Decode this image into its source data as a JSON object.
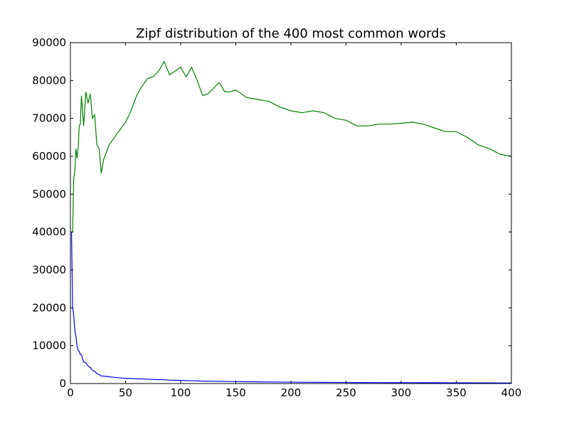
{
  "chart_data": {
    "type": "line",
    "title": "Zipf distribution of the 400 most common words",
    "x": [
      1,
      2,
      3,
      4,
      5,
      6,
      7,
      8,
      9,
      10,
      12,
      14,
      16,
      18,
      20,
      22,
      24,
      26,
      28,
      30,
      35,
      40,
      45,
      50,
      55,
      60,
      65,
      70,
      75,
      80,
      85,
      90,
      95,
      100,
      105,
      110,
      115,
      120,
      125,
      130,
      135,
      140,
      145,
      150,
      160,
      170,
      180,
      190,
      200,
      210,
      220,
      230,
      240,
      250,
      260,
      270,
      280,
      290,
      300,
      310,
      320,
      330,
      340,
      350,
      360,
      370,
      380,
      390,
      400
    ],
    "series": [
      {
        "color": "#0000ff",
        "values": [
          40000,
          20000,
          18000,
          14000,
          12400,
          9917,
          8857,
          8500,
          7611,
          7600,
          5667,
          5500,
          4625,
          4250,
          3500,
          3227,
          2625,
          2385,
          1982,
          1967,
          1800,
          1625,
          1489,
          1380,
          1309,
          1267,
          1208,
          1150,
          1080,
          1031,
          1000,
          906,
          868,
          835,
          771,
          759,
          696,
          633,
          612,
          600,
          589,
          550,
          531,
          517,
          472,
          441,
          414,
          384,
          360,
          340,
          327,
          311,
          292,
          278,
          262,
          252,
          245,
          236,
          229,
          223,
          214,
          205,
          196,
          190,
          181,
          170,
          163,
          155,
          150
        ]
      },
      {
        "color": "#008000",
        "values": [
          40000,
          40000,
          54000,
          56000,
          62000,
          59500,
          62000,
          68000,
          68500,
          76000,
          68000,
          77000,
          74000,
          76500,
          70000,
          71000,
          63000,
          62000,
          55500,
          59000,
          63000,
          65000,
          67000,
          69000,
          72000,
          76000,
          78500,
          80500,
          81000,
          82500,
          85000,
          81500,
          82500,
          83500,
          81000,
          83500,
          80000,
          76000,
          76500,
          78000,
          79500,
          77000,
          77000,
          77500,
          75500,
          75000,
          74500,
          73000,
          72000,
          71500,
          72000,
          71500,
          70000,
          69500,
          68000,
          68000,
          68500,
          68500,
          68700,
          69000,
          68500,
          67500,
          66500,
          66500,
          65000,
          63000,
          62000,
          60500,
          60000
        ]
      }
    ],
    "xlim": [
      0,
      400
    ],
    "xticks": [
      0,
      50,
      100,
      150,
      200,
      250,
      300,
      350,
      400
    ],
    "ylim": [
      0,
      90000
    ],
    "yticks": [
      0,
      10000,
      20000,
      30000,
      40000,
      50000,
      60000,
      70000,
      80000,
      90000
    ]
  }
}
